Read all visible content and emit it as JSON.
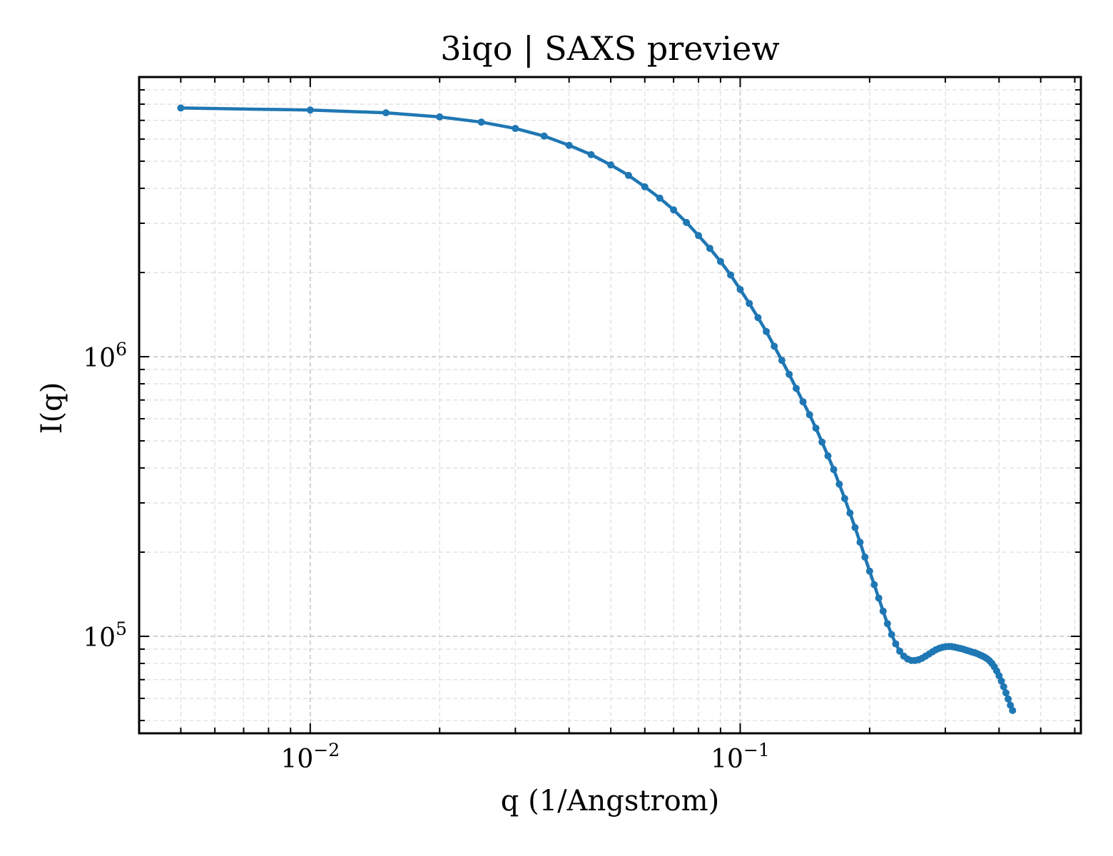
{
  "chart_data": {
    "type": "line",
    "title": "3iqo | SAXS preview",
    "xlabel": "q (1/Angstrom)",
    "ylabel": "I(q)",
    "xscale": "log",
    "yscale": "log",
    "xlim": [
      0.004,
      0.62
    ],
    "ylim": [
      45000,
      10000000
    ],
    "x_ticks": [
      {
        "base": "10",
        "exp": "−2",
        "value": 0.01
      },
      {
        "base": "10",
        "exp": "−1",
        "value": 0.1
      }
    ],
    "y_ticks": [
      {
        "base": "10",
        "exp": "5",
        "value": 100000
      },
      {
        "base": "10",
        "exp": "6",
        "value": 1000000
      }
    ],
    "grid": true,
    "color": "#1f77b4",
    "series": [
      {
        "points": [
          [
            0.005,
            7750000
          ],
          [
            0.01,
            7620000
          ],
          [
            0.015,
            7450000
          ],
          [
            0.02,
            7200000
          ],
          [
            0.025,
            6900000
          ],
          [
            0.03,
            6550000
          ],
          [
            0.035,
            6150000
          ],
          [
            0.04,
            5700000
          ],
          [
            0.045,
            5280000
          ],
          [
            0.05,
            4850000
          ],
          [
            0.055,
            4450000
          ],
          [
            0.06,
            4050000
          ],
          [
            0.065,
            3690000
          ],
          [
            0.07,
            3350000
          ],
          [
            0.075,
            3020000
          ],
          [
            0.08,
            2710000
          ],
          [
            0.085,
            2440000
          ],
          [
            0.09,
            2190000
          ],
          [
            0.095,
            1960000
          ],
          [
            0.1,
            1740000
          ],
          [
            0.105,
            1550000
          ],
          [
            0.11,
            1380000
          ],
          [
            0.115,
            1230000
          ],
          [
            0.12,
            1090000
          ],
          [
            0.125,
            970000
          ],
          [
            0.13,
            865000
          ],
          [
            0.135,
            770000
          ],
          [
            0.14,
            690000
          ],
          [
            0.145,
            620000
          ],
          [
            0.15,
            555000
          ],
          [
            0.155,
            495000
          ],
          [
            0.16,
            442000
          ],
          [
            0.165,
            395000
          ],
          [
            0.17,
            350000
          ],
          [
            0.175,
            311000
          ],
          [
            0.18,
            276000
          ],
          [
            0.185,
            245000
          ],
          [
            0.19,
            217000
          ],
          [
            0.195,
            192000
          ],
          [
            0.2,
            171000
          ],
          [
            0.205,
            153000
          ],
          [
            0.21,
            137000
          ],
          [
            0.215,
            123000
          ],
          [
            0.22,
            111000
          ],
          [
            0.225,
            101500
          ],
          [
            0.23,
            94000
          ],
          [
            0.235,
            88500
          ],
          [
            0.24,
            85000
          ],
          [
            0.245,
            83000
          ],
          [
            0.25,
            82000
          ],
          [
            0.255,
            82000
          ],
          [
            0.26,
            82500
          ],
          [
            0.265,
            83500
          ],
          [
            0.27,
            85000
          ],
          [
            0.275,
            86500
          ],
          [
            0.28,
            88000
          ],
          [
            0.285,
            89500
          ],
          [
            0.29,
            90500
          ],
          [
            0.295,
            91300
          ],
          [
            0.3,
            91800
          ],
          [
            0.305,
            92000
          ],
          [
            0.31,
            91900
          ],
          [
            0.315,
            91500
          ],
          [
            0.32,
            91000
          ],
          [
            0.325,
            90500
          ],
          [
            0.33,
            90000
          ],
          [
            0.335,
            89300
          ],
          [
            0.34,
            88700
          ],
          [
            0.345,
            88000
          ],
          [
            0.35,
            87500
          ],
          [
            0.355,
            86800
          ],
          [
            0.36,
            86000
          ],
          [
            0.365,
            85200
          ],
          [
            0.37,
            84300
          ],
          [
            0.375,
            83200
          ],
          [
            0.38,
            81800
          ],
          [
            0.385,
            80000
          ],
          [
            0.39,
            77800
          ],
          [
            0.395,
            75200
          ],
          [
            0.4,
            72300
          ],
          [
            0.405,
            69200
          ],
          [
            0.41,
            66000
          ],
          [
            0.415,
            62800
          ],
          [
            0.42,
            59700
          ],
          [
            0.425,
            56700
          ],
          [
            0.43,
            54300
          ]
        ]
      }
    ]
  }
}
